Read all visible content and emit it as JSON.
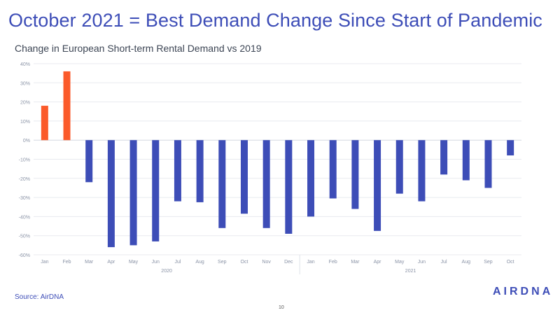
{
  "title": "October 2021 = Best Demand Change Since Start of Pandemic",
  "subtitle": "Change in European Short-term Rental Demand vs 2019",
  "source": "Source: AirDNA",
  "logo_text": "AIRDNA",
  "page_number": "10",
  "colors": {
    "positive": "#fb5a2a",
    "negative": "#3d4db7",
    "title": "#3d4db7",
    "grid": "#e8eaef",
    "tick": "#8a93a6"
  },
  "chart_data": {
    "type": "bar",
    "ylabel": "",
    "xlabel": "",
    "ylim": [
      -60,
      40
    ],
    "yticks": [
      40,
      30,
      20,
      10,
      0,
      -10,
      -20,
      -30,
      -40,
      -50,
      -60
    ],
    "ytick_labels": [
      "40%",
      "30%",
      "20%",
      "10%",
      "0%",
      "-10%",
      "-20%",
      "-30%",
      "-40%",
      "-50%",
      "-60%"
    ],
    "grid": true,
    "categories": [
      "Jan",
      "Feb",
      "Mar",
      "Apr",
      "May",
      "Jun",
      "Jul",
      "Aug",
      "Sep",
      "Oct",
      "Nov",
      "Dec",
      "Jan",
      "Feb",
      "Mar",
      "Apr",
      "May",
      "Jun",
      "Jul",
      "Aug",
      "Sep",
      "Oct"
    ],
    "values": [
      18,
      36,
      -22,
      -56,
      -55,
      -53,
      -32,
      -32.5,
      -46,
      -38.5,
      -46,
      -49,
      -40,
      -30.5,
      -36,
      -47.5,
      -28,
      -32,
      -18,
      -21,
      -25,
      -8
    ],
    "year_groups": [
      {
        "label": "2020",
        "count": 12
      },
      {
        "label": "2021",
        "count": 10
      }
    ]
  }
}
